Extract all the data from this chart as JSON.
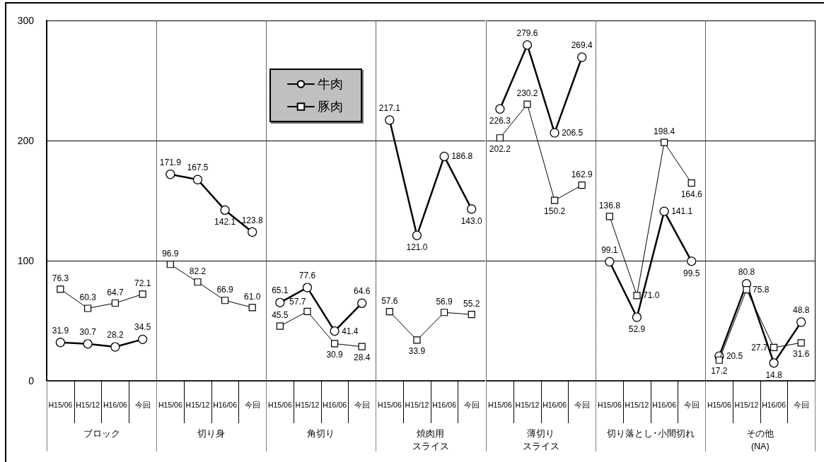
{
  "chart_data": [
    {
      "type": "line",
      "xlabel": "ブロック",
      "categories": [
        "H15/06",
        "H15/12",
        "H16/06",
        "今回"
      ],
      "series": [
        {
          "color": "#000000",
          "marker": "circle",
          "values": [
            31.9,
            30.7,
            28.2,
            34.5
          ],
          "value_labels": [
            "31.9",
            "30.7",
            "28.2",
            "34.5"
          ]
        },
        {
          "color": "#000000",
          "marker": "square",
          "values": [
            76.3,
            60.3,
            64.7,
            72.1
          ],
          "value_labels": [
            "76.3",
            "60.3",
            "64.7",
            "72.1"
          ]
        }
      ],
      "ylim": [
        0,
        300
      ],
      "yticks": [
        0,
        100,
        200,
        300
      ],
      "grid": "y"
    },
    {
      "type": "line",
      "xlabel": "切り身",
      "categories": [
        "H15/06",
        "H15/12",
        "H16/06",
        "今回"
      ],
      "series": [
        {
          "color": "#000000",
          "marker": "circle",
          "values": [
            171.9,
            167.5,
            142.1,
            123.8
          ],
          "value_labels": [
            "171.9",
            "167.5",
            "142.1",
            "123.8"
          ]
        },
        {
          "color": "#000000",
          "marker": "square",
          "values": [
            96.9,
            82.2,
            66.9,
            61.0
          ],
          "value_labels": [
            "96.9",
            "82.2",
            "66.9",
            "61.0"
          ]
        }
      ],
      "ylim": [
        0,
        300
      ],
      "yticks": [
        0,
        100,
        200,
        300
      ],
      "grid": "y",
      "tick_labels": "x"
    },
    {
      "type": "line",
      "xlabel": "角切り",
      "categories": [
        "H15/06",
        "H15/12",
        "H16/06",
        "今回"
      ],
      "series": [
        {
          "name": "牛肉",
          "color": "#000000",
          "marker": "circle",
          "values": [
            65.1,
            77.6,
            41.4,
            64.6
          ],
          "value_labels": [
            "65.1",
            "77.6",
            "41.4",
            "64.6"
          ]
        },
        {
          "name": "豚肉",
          "color": "#000000",
          "marker": "square",
          "values": [
            45.5,
            57.7,
            30.9,
            28.4
          ],
          "value_labels": [
            "45.5",
            "57.7",
            "30.9",
            "28.4"
          ]
        }
      ],
      "ylim": [
        0,
        300
      ],
      "yticks": [
        0,
        100,
        200,
        300
      ],
      "grid": "y",
      "tick_labels": "x",
      "legend": "top left"
    },
    {
      "type": "line",
      "xlabel": "焼肉用スライス",
      "categories": [
        "H15/06",
        "H15/12",
        "H16/06",
        "今回"
      ],
      "series": [
        {
          "color": "#000000",
          "marker": "circle",
          "values": [
            217.1,
            121.0,
            186.8,
            143.0
          ],
          "value_labels": [
            "217.1",
            "121.0",
            "186.8",
            "143.0"
          ]
        },
        {
          "color": "#000000",
          "marker": "square",
          "values": [
            57.6,
            33.9,
            56.9,
            55.2
          ],
          "value_labels": [
            "57.6",
            "33.9",
            "56.9",
            "55.2"
          ]
        }
      ],
      "ylim": [
        0,
        300
      ],
      "yticks": [
        0,
        100,
        200,
        300
      ],
      "grid": "y",
      "tick_labels": "x"
    },
    {
      "type": "line",
      "xlabel": "薄切りスライス",
      "categories": [
        "H15/06",
        "H15/12",
        "H16/06",
        "今回"
      ],
      "series": [
        {
          "color": "#000000",
          "marker": "circle",
          "values": [
            226.3,
            279.6,
            206.5,
            269.4
          ],
          "value_labels": [
            "226.3",
            "279.6",
            "206.5",
            "269.4"
          ]
        },
        {
          "color": "#000000",
          "marker": "square",
          "values": [
            202.2,
            230.2,
            150.2,
            162.9
          ],
          "value_labels": [
            "202.2",
            "230.2",
            "150.2",
            "162.9"
          ]
        }
      ],
      "ylim": [
        0,
        300
      ],
      "yticks": [
        0,
        100,
        200,
        300
      ],
      "grid": "y",
      "tick_labels": "x"
    },
    {
      "type": "line",
      "xlabel": "切り落とし･小間切れ",
      "categories": [
        "H15/06",
        "H15/12",
        "H16/06",
        "今回"
      ],
      "series": [
        {
          "color": "#000000",
          "marker": "circle",
          "values": [
            99.1,
            52.9,
            141.1,
            99.5
          ],
          "value_labels": [
            "99.1",
            "52.9",
            "141.1",
            "99.5"
          ]
        },
        {
          "color": "#000000",
          "marker": "square",
          "values": [
            136.8,
            71.0,
            198.4,
            164.6
          ],
          "value_labels": [
            "136.8",
            "71.0",
            "198.4",
            "164.6"
          ]
        }
      ],
      "ylim": [
        0,
        300
      ],
      "yticks": [
        0,
        100,
        200,
        300
      ],
      "grid": "y",
      "tick_labels": "x"
    },
    {
      "type": "line",
      "xlabel": "その他\n(NA)",
      "categories": [
        "H15/06",
        "H15/12",
        "H16/06",
        "今回"
      ],
      "series": [
        {
          "color": "#000000",
          "marker": "circle",
          "values": [
            20.5,
            80.8,
            14.8,
            48.8
          ],
          "value_labels": [
            "20.5",
            "80.8",
            "14.8",
            "48.8"
          ]
        },
        {
          "color": "#000000",
          "marker": "square",
          "values": [
            17.2,
            75.8,
            27.7,
            31.6
          ],
          "value_labels": [
            "17.2",
            "75.8",
            "27.7",
            "31.6"
          ]
        }
      ],
      "ylim": [
        0,
        300
      ],
      "yticks": [
        0,
        100,
        200,
        300
      ],
      "grid": "y",
      "tick_labels": "x"
    }
  ]
}
